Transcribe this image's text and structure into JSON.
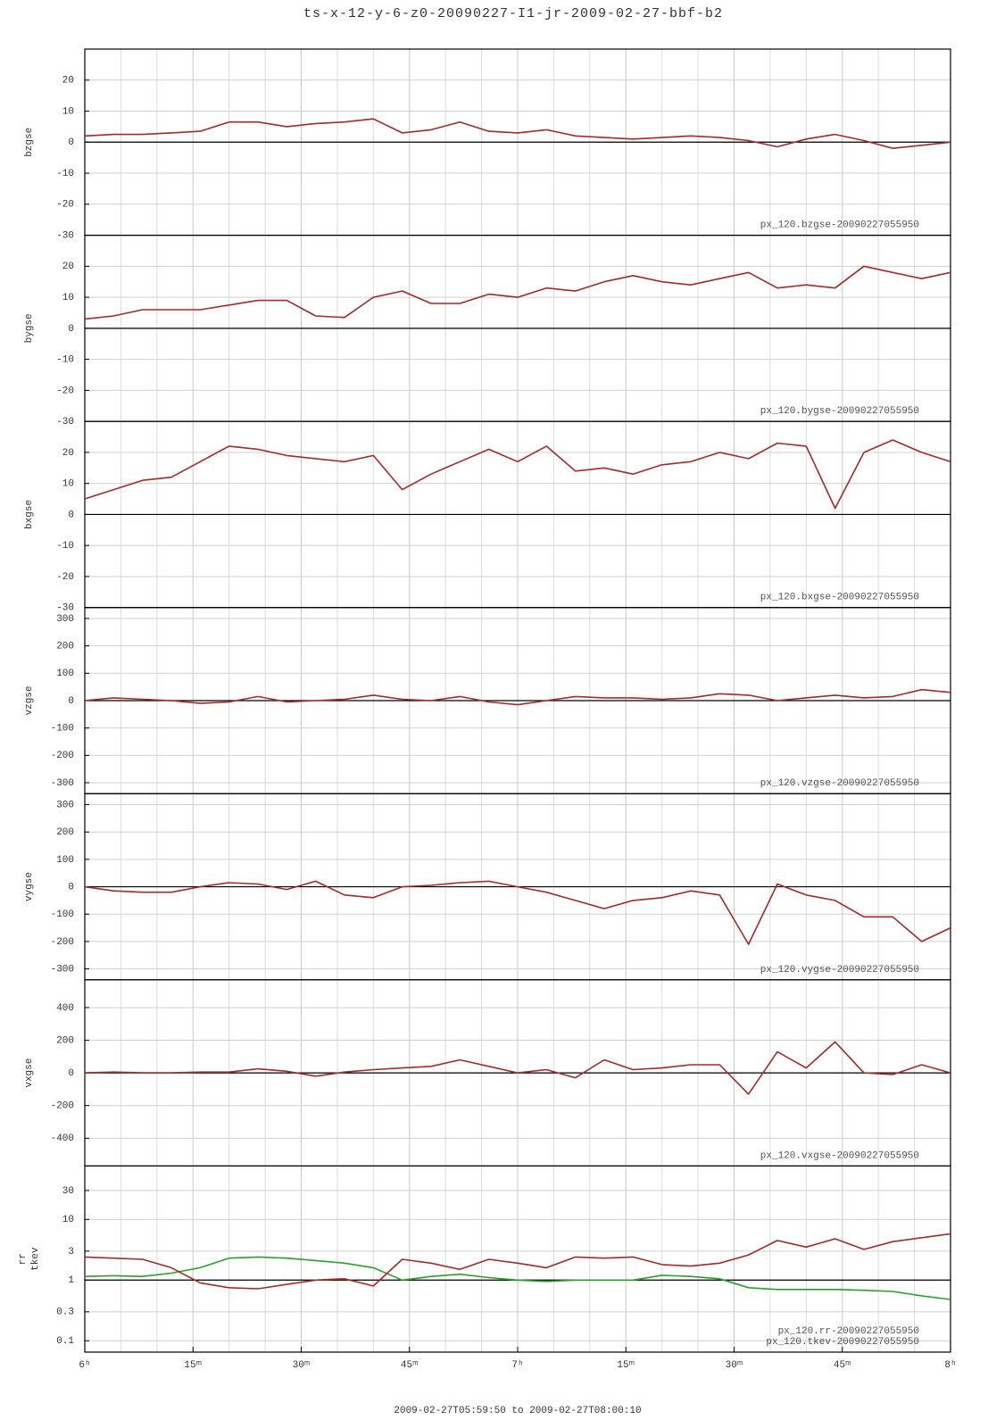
{
  "title": "ts-x-12-y-6-z0-20090227-I1-jr-2009-02-27-bbf-b2",
  "xlabel": "2009-02-27T05:59:50 to 2009-02-27T08:00:10",
  "x": [
    0,
    4,
    8,
    12,
    16,
    20,
    24,
    28,
    32,
    36,
    40,
    44,
    48,
    52,
    56,
    60,
    64,
    68,
    72,
    76,
    80,
    84,
    88,
    92,
    96,
    100,
    104,
    108,
    112,
    116,
    120
  ],
  "xlim": [
    0,
    120
  ],
  "xticks": [
    {
      "value": 0,
      "label": "6ʰ"
    },
    {
      "value": 15,
      "label": "15ᵐ"
    },
    {
      "value": 30,
      "label": "30ᵐ"
    },
    {
      "value": 45,
      "label": "45ᵐ"
    },
    {
      "value": 60,
      "label": "7ʰ"
    },
    {
      "value": 75,
      "label": "15ᵐ"
    },
    {
      "value": 90,
      "label": "30ᵐ"
    },
    {
      "value": 105,
      "label": "45ᵐ"
    },
    {
      "value": 120,
      "label": "8ʰ"
    }
  ],
  "xgrid": [
    5,
    10,
    20,
    25,
    35,
    40,
    50,
    55,
    65,
    70,
    80,
    85,
    95,
    100,
    110,
    115
  ],
  "chart_data": [
    {
      "type": "line",
      "ylabel": [
        "bzgse"
      ],
      "ylim": [
        -30,
        30
      ],
      "yticks": [
        -30,
        -20,
        -10,
        0,
        10,
        20
      ],
      "hline": 0,
      "log": false,
      "series": [
        {
          "name": "px_120.bzgse-20090227055950",
          "color": "#a52a2a",
          "values": [
            2,
            2.5,
            2.5,
            3,
            3.5,
            6.5,
            6.5,
            5,
            6,
            6.5,
            7.5,
            3,
            4,
            6.5,
            3.5,
            3,
            4,
            2,
            1.5,
            1,
            1.5,
            2,
            1.5,
            0.5,
            -1.5,
            1,
            2.5,
            0.5,
            -2,
            -1,
            0
          ]
        }
      ]
    },
    {
      "type": "line",
      "ylabel": [
        "bygse"
      ],
      "ylim": [
        -30,
        30
      ],
      "yticks": [
        -30,
        -20,
        -10,
        0,
        10,
        20
      ],
      "hline": 0,
      "log": false,
      "series": [
        {
          "name": "px_120.bygse-20090227055950",
          "color": "#a52a2a",
          "values": [
            3,
            4,
            6,
            6,
            6,
            7.5,
            9,
            9,
            4,
            3.5,
            10,
            12,
            8,
            8,
            11,
            10,
            13,
            12,
            15,
            17,
            15,
            14,
            16,
            18,
            13,
            14,
            13,
            20,
            18,
            16,
            18
          ]
        }
      ]
    },
    {
      "type": "line",
      "ylabel": [
        "bxgse"
      ],
      "ylim": [
        -30,
        30
      ],
      "yticks": [
        -30,
        -20,
        -10,
        0,
        10,
        20
      ],
      "hline": 0,
      "log": false,
      "series": [
        {
          "name": "px_120.bxgse-20090227055950",
          "color": "#a52a2a",
          "values": [
            5,
            8,
            11,
            12,
            17,
            22,
            21,
            19,
            18,
            17,
            19,
            8,
            13,
            17,
            21,
            17,
            22,
            14,
            15,
            13,
            16,
            17,
            20,
            18,
            23,
            22,
            2,
            20,
            24,
            20,
            17
          ]
        }
      ]
    },
    {
      "type": "line",
      "ylabel": [
        "vzgse"
      ],
      "ylim": [
        -340,
        340
      ],
      "yticks": [
        -300,
        -200,
        -100,
        0,
        100,
        200,
        300
      ],
      "hline": 0,
      "log": false,
      "series": [
        {
          "name": "px_120.vzgse-20090227055950",
          "color": "#a52a2a",
          "values": [
            0,
            10,
            5,
            0,
            -10,
            -5,
            15,
            -5,
            0,
            5,
            20,
            5,
            0,
            15,
            -5,
            -15,
            0,
            15,
            10,
            10,
            5,
            10,
            25,
            20,
            0,
            10,
            20,
            10,
            15,
            40,
            30
          ]
        }
      ]
    },
    {
      "type": "line",
      "ylabel": [
        "vygse"
      ],
      "ylim": [
        -340,
        340
      ],
      "yticks": [
        -300,
        -200,
        -100,
        0,
        100,
        200,
        300
      ],
      "hline": 0,
      "log": false,
      "series": [
        {
          "name": "px_120.vygse-20090227055950",
          "color": "#a52a2a",
          "values": [
            0,
            -15,
            -20,
            -20,
            0,
            15,
            10,
            -10,
            20,
            -30,
            -40,
            0,
            5,
            15,
            20,
            0,
            -20,
            -50,
            -80,
            -50,
            -40,
            -15,
            -30,
            -210,
            10,
            -30,
            -50,
            -110,
            -110,
            -200,
            -150
          ]
        }
      ]
    },
    {
      "type": "line",
      "ylabel": [
        "vxgse"
      ],
      "ylim": [
        -570,
        570
      ],
      "yticks": [
        -400,
        -200,
        0,
        200,
        400
      ],
      "hline": 0,
      "log": false,
      "series": [
        {
          "name": "px_120.vxgse-20090227055950",
          "color": "#a52a2a",
          "values": [
            0,
            5,
            0,
            0,
            5,
            5,
            25,
            10,
            -20,
            5,
            20,
            30,
            40,
            80,
            40,
            0,
            20,
            -30,
            80,
            20,
            30,
            50,
            50,
            -130,
            130,
            30,
            190,
            0,
            -10,
            50,
            0
          ]
        }
      ]
    },
    {
      "type": "line",
      "ylabel": [
        "rr",
        "tkev"
      ],
      "ylim": [
        0.065,
        76
      ],
      "yticks": [
        0.1,
        0.3,
        1,
        3,
        10,
        30
      ],
      "hline": 1,
      "log": true,
      "series": [
        {
          "name": "px_120.rr-20090227055950",
          "color": "#2ca02c",
          "values": [
            1.15,
            1.18,
            1.15,
            1.3,
            1.6,
            2.3,
            2.4,
            2.3,
            2.1,
            1.9,
            1.6,
            1.0,
            1.15,
            1.25,
            1.1,
            1.0,
            0.95,
            1.0,
            1.0,
            1.0,
            1.2,
            1.15,
            1.05,
            0.75,
            0.7,
            0.7,
            0.7,
            0.68,
            0.65,
            0.55,
            0.48
          ]
        },
        {
          "name": "px_120.tkev-20090227055950",
          "color": "#a52a2a",
          "values": [
            2.4,
            2.3,
            2.2,
            1.6,
            0.9,
            0.75,
            0.72,
            0.85,
            1.0,
            1.05,
            0.8,
            2.2,
            1.9,
            1.5,
            2.2,
            1.9,
            1.6,
            2.4,
            2.3,
            2.4,
            1.8,
            1.7,
            1.9,
            2.6,
            4.5,
            3.5,
            4.8,
            3.2,
            4.3,
            5.0,
            5.8
          ]
        }
      ]
    }
  ]
}
